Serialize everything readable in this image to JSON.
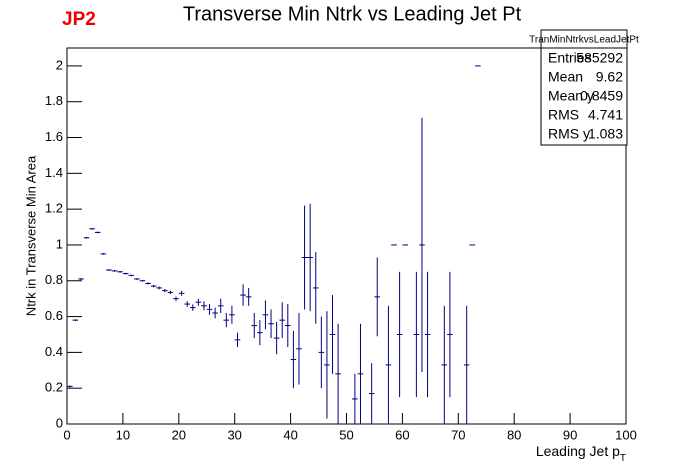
{
  "chart_data": {
    "type": "profile",
    "title": "Transverse Min Ntrk vs Leading Jet Pt",
    "tag": "JP2",
    "xlabel": {
      "text": "Leading Jet p",
      "subscript": "T"
    },
    "ylabel": "Ntrk in Transverse Min Area",
    "xlim": [
      0,
      100
    ],
    "xticks": [
      0,
      10,
      20,
      30,
      40,
      50,
      60,
      70,
      80,
      90,
      100
    ],
    "ylim": [
      0,
      2.1
    ],
    "yticks": [
      0,
      0.2,
      0.4,
      0.6,
      0.8,
      1,
      1.2,
      1.4,
      1.6,
      1.8,
      2
    ],
    "series": [
      {
        "name": "TranMinNtrkvsLeadJetPt",
        "color": "#000080",
        "x": [
          0.5,
          1.5,
          2.5,
          3.5,
          4.5,
          5.5,
          6.5,
          7.5,
          8.5,
          9.5,
          10.5,
          11.5,
          12.5,
          13.5,
          14.5,
          15.5,
          16.5,
          17.5,
          18.5,
          19.5,
          20.5,
          21.5,
          22.5,
          23.5,
          24.5,
          25.5,
          26.5,
          27.5,
          28.5,
          29.5,
          30.5,
          31.5,
          32.5,
          33.5,
          34.5,
          35.5,
          36.5,
          37.5,
          38.5,
          39.5,
          40.5,
          41.5,
          42.5,
          43.5,
          44.5,
          45.5,
          46.5,
          47.5,
          48.5,
          51.5,
          52.5,
          54.5,
          55.5,
          57.5,
          58.5,
          59.5,
          60.5,
          62.5,
          63.5,
          64.5,
          67.5,
          68.5,
          71.5,
          72.5,
          73.5
        ],
        "values": [
          0.21,
          0.58,
          0.81,
          1.04,
          1.09,
          1.07,
          0.95,
          0.86,
          0.855,
          0.85,
          0.84,
          0.83,
          0.81,
          0.8,
          0.785,
          0.77,
          0.76,
          0.745,
          0.735,
          0.7,
          0.73,
          0.67,
          0.65,
          0.68,
          0.66,
          0.64,
          0.62,
          0.66,
          0.58,
          0.61,
          0.47,
          0.72,
          0.71,
          0.55,
          0.51,
          0.61,
          0.56,
          0.48,
          0.58,
          0.55,
          0.36,
          0.42,
          0.93,
          0.93,
          0.76,
          0.4,
          0.33,
          0.5,
          0.28,
          0.14,
          0.28,
          0.17,
          0.71,
          0.33,
          1,
          0.5,
          1,
          0.5,
          1,
          0.5,
          0.33,
          0.5,
          0.33,
          1,
          2
        ],
        "errors": [
          0.005,
          0.005,
          0.005,
          0.005,
          0.005,
          0.005,
          0.005,
          0.005,
          0.005,
          0.005,
          0.005,
          0.005,
          0.005,
          0.005,
          0.006,
          0.007,
          0.008,
          0.009,
          0.01,
          0.012,
          0.014,
          0.016,
          0.018,
          0.02,
          0.025,
          0.03,
          0.03,
          0.04,
          0.04,
          0.05,
          0.04,
          0.06,
          0.05,
          0.07,
          0.07,
          0.08,
          0.08,
          0.09,
          0.1,
          0.12,
          0.16,
          0.2,
          0.29,
          0.3,
          0.2,
          0.2,
          0.3,
          0.22,
          0.28,
          0.14,
          0.28,
          0.17,
          0.22,
          0.33,
          0,
          0.35,
          0,
          0.35,
          0.71,
          0.35,
          0.33,
          0.35,
          0.33,
          0,
          0
        ]
      }
    ],
    "stats": {
      "title": "TranMinNtrkvsLeadJetPt",
      "rows": [
        [
          "Entries",
          585292
        ],
        [
          "Mean",
          9.62
        ],
        [
          "Mean y",
          0.8459
        ],
        [
          "RMS",
          4.741
        ],
        [
          "RMS y",
          1.083
        ]
      ]
    }
  }
}
